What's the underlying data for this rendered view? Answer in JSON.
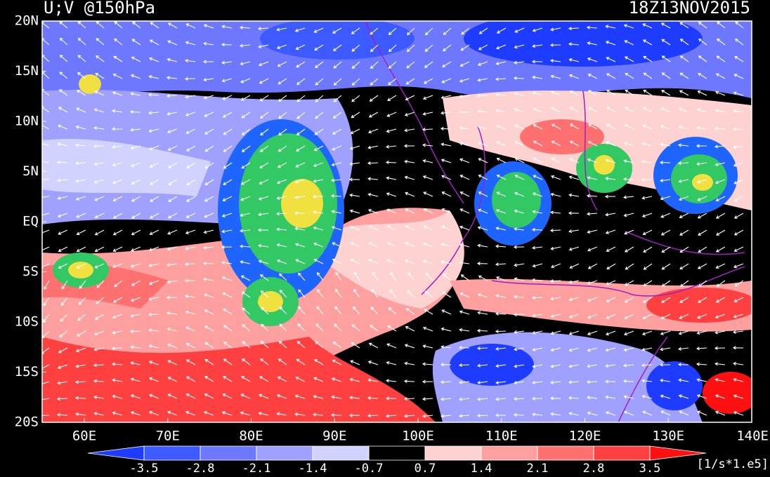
{
  "header": {
    "title": "U;V @150hPa",
    "time": "18Z13NOV2015"
  },
  "map": {
    "lat_labels": [
      "20N",
      "15N",
      "10N",
      "5N",
      "EQ",
      "5S",
      "10S",
      "15S",
      "20S"
    ],
    "lon_labels": [
      "60E",
      "70E",
      "80E",
      "90E",
      "100E",
      "110E",
      "120E",
      "130E",
      "140E"
    ]
  },
  "colorbar": {
    "levels": [
      -3.5,
      -2.8,
      -2.1,
      -1.4,
      -0.7,
      0.7,
      1.4,
      2.1,
      2.8,
      3.5
    ],
    "colors": [
      "#1e3cff",
      "#3c5aff",
      "#6e78ff",
      "#a0a0ff",
      "#d2d2ff",
      "#000000",
      "#ffd2d2",
      "#ffa0a0",
      "#ff7070",
      "#ff4040",
      "#ff1010"
    ],
    "unit": "[1/s*1.e5]"
  }
}
